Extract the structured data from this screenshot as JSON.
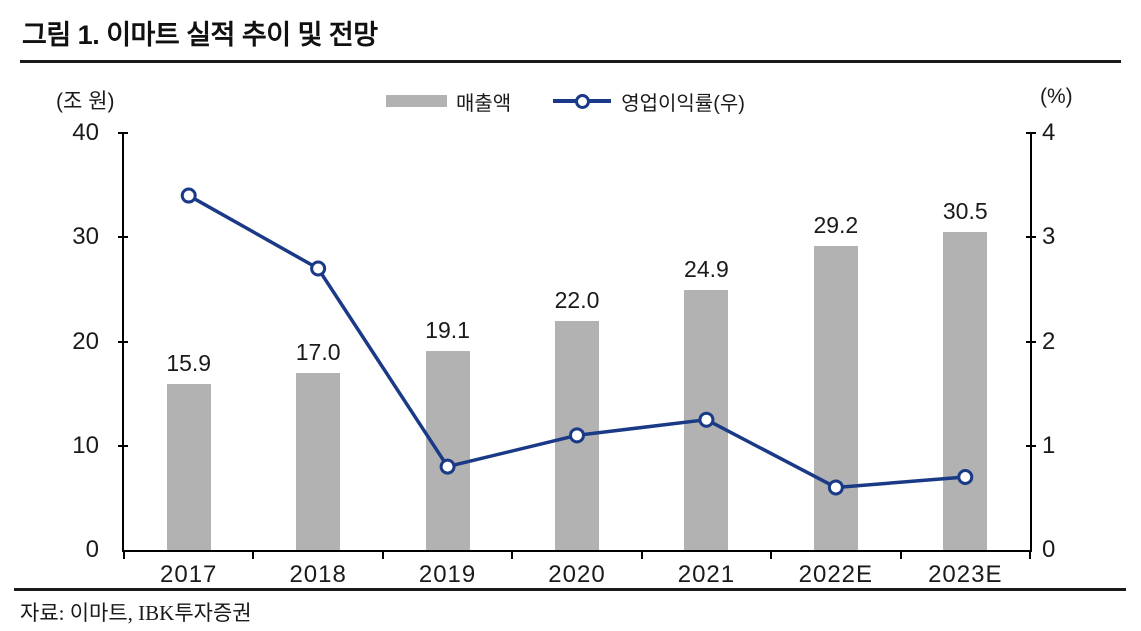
{
  "header": {
    "title": "그림 1. 이마트 실적 추이 및 전망"
  },
  "axes": {
    "left_unit": "(조 원)",
    "right_unit": "(%)"
  },
  "legend": [
    {
      "type": "bar",
      "label": "매출액",
      "color": "#b2b2b2"
    },
    {
      "type": "line",
      "label": "영업이익률(우)",
      "color": "#1a3a87"
    }
  ],
  "chart_data": {
    "type": "bar",
    "title": "그림 1. 이마트 실적 추이 및 전망",
    "categories": [
      "2017",
      "2018",
      "2019",
      "2020",
      "2021",
      "2022E",
      "2023E"
    ],
    "series": [
      {
        "name": "매출액",
        "type": "bar",
        "axis": "left",
        "unit": "조 원",
        "values": [
          15.9,
          17.0,
          19.1,
          22.0,
          24.9,
          29.2,
          30.5
        ],
        "data_labels_shown": true,
        "color": "#b2b2b2"
      },
      {
        "name": "영업이익률(우)",
        "type": "line",
        "axis": "right",
        "unit": "%",
        "values": [
          3.4,
          2.7,
          0.8,
          1.1,
          1.25,
          0.6,
          0.7
        ],
        "marker": "open-circle",
        "color": "#1a3a87"
      }
    ],
    "left_axis": {
      "label": "(조 원)",
      "range": [
        0,
        40
      ],
      "ticks": [
        0,
        10,
        20,
        30,
        40
      ]
    },
    "right_axis": {
      "label": "(%)",
      "range": [
        0,
        4
      ],
      "ticks": [
        0,
        1,
        2,
        3,
        4
      ]
    },
    "grid": false,
    "legend_position": "top-center",
    "source": "자료: 이마트, IBK투자증권"
  },
  "footer": {
    "source": "자료: 이마트, IBK투자증권"
  },
  "colors": {
    "bar": "#b2b2b2",
    "line": "#1a3a87",
    "axis": "#000000",
    "text": "#1a1a1a"
  }
}
